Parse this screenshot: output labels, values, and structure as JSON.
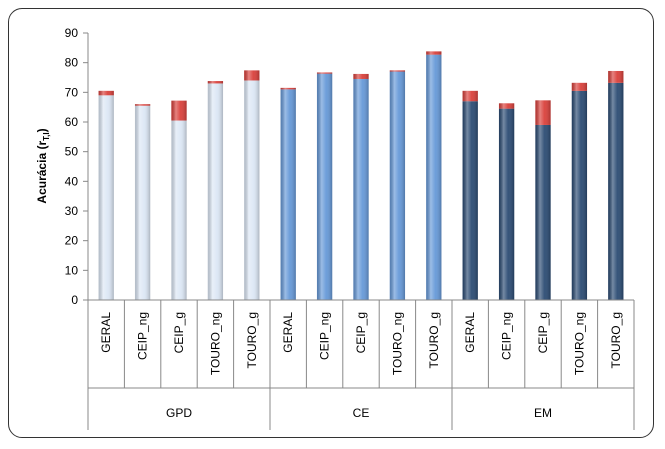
{
  "chart_data": {
    "type": "bar",
    "stacked": true,
    "ylabel_main": "Acurácia (r",
    "ylabel_sub": "T,I",
    "ylabel_close": ")",
    "ylim": [
      0,
      90
    ],
    "yticks": [
      0,
      10,
      20,
      30,
      40,
      50,
      60,
      70,
      80,
      90
    ],
    "grid": false,
    "legend": "none",
    "groups": [
      {
        "name": "GPD",
        "color": "#dce7f5",
        "categories": [
          "GERAL",
          "CEIP_ng",
          "CEIP_g",
          "TOURO_ng",
          "TOURO_g"
        ],
        "base": [
          69,
          65.5,
          60.5,
          73,
          74
        ],
        "top": [
          1.5,
          0.5,
          6.7,
          0.8,
          3.4
        ]
      },
      {
        "name": "CE",
        "color": "#6699d8",
        "categories": [
          "GERAL",
          "CEIP_ng",
          "CEIP_g",
          "TOURO_ng",
          "TOURO_g"
        ],
        "base": [
          71,
          76.3,
          74.5,
          77,
          82.7
        ],
        "top": [
          0.5,
          0.4,
          1.7,
          0.4,
          1.1
        ]
      },
      {
        "name": "EM",
        "color": "#2b4b73",
        "categories": [
          "GERAL",
          "CEIP_ng",
          "CEIP_g",
          "TOURO_ng",
          "TOURO_g"
        ],
        "base": [
          67,
          64.5,
          59,
          70.5,
          73.2
        ],
        "top": [
          3.5,
          1.8,
          8.3,
          2.7,
          4.0
        ]
      }
    ],
    "top_color": "#d9403b"
  }
}
